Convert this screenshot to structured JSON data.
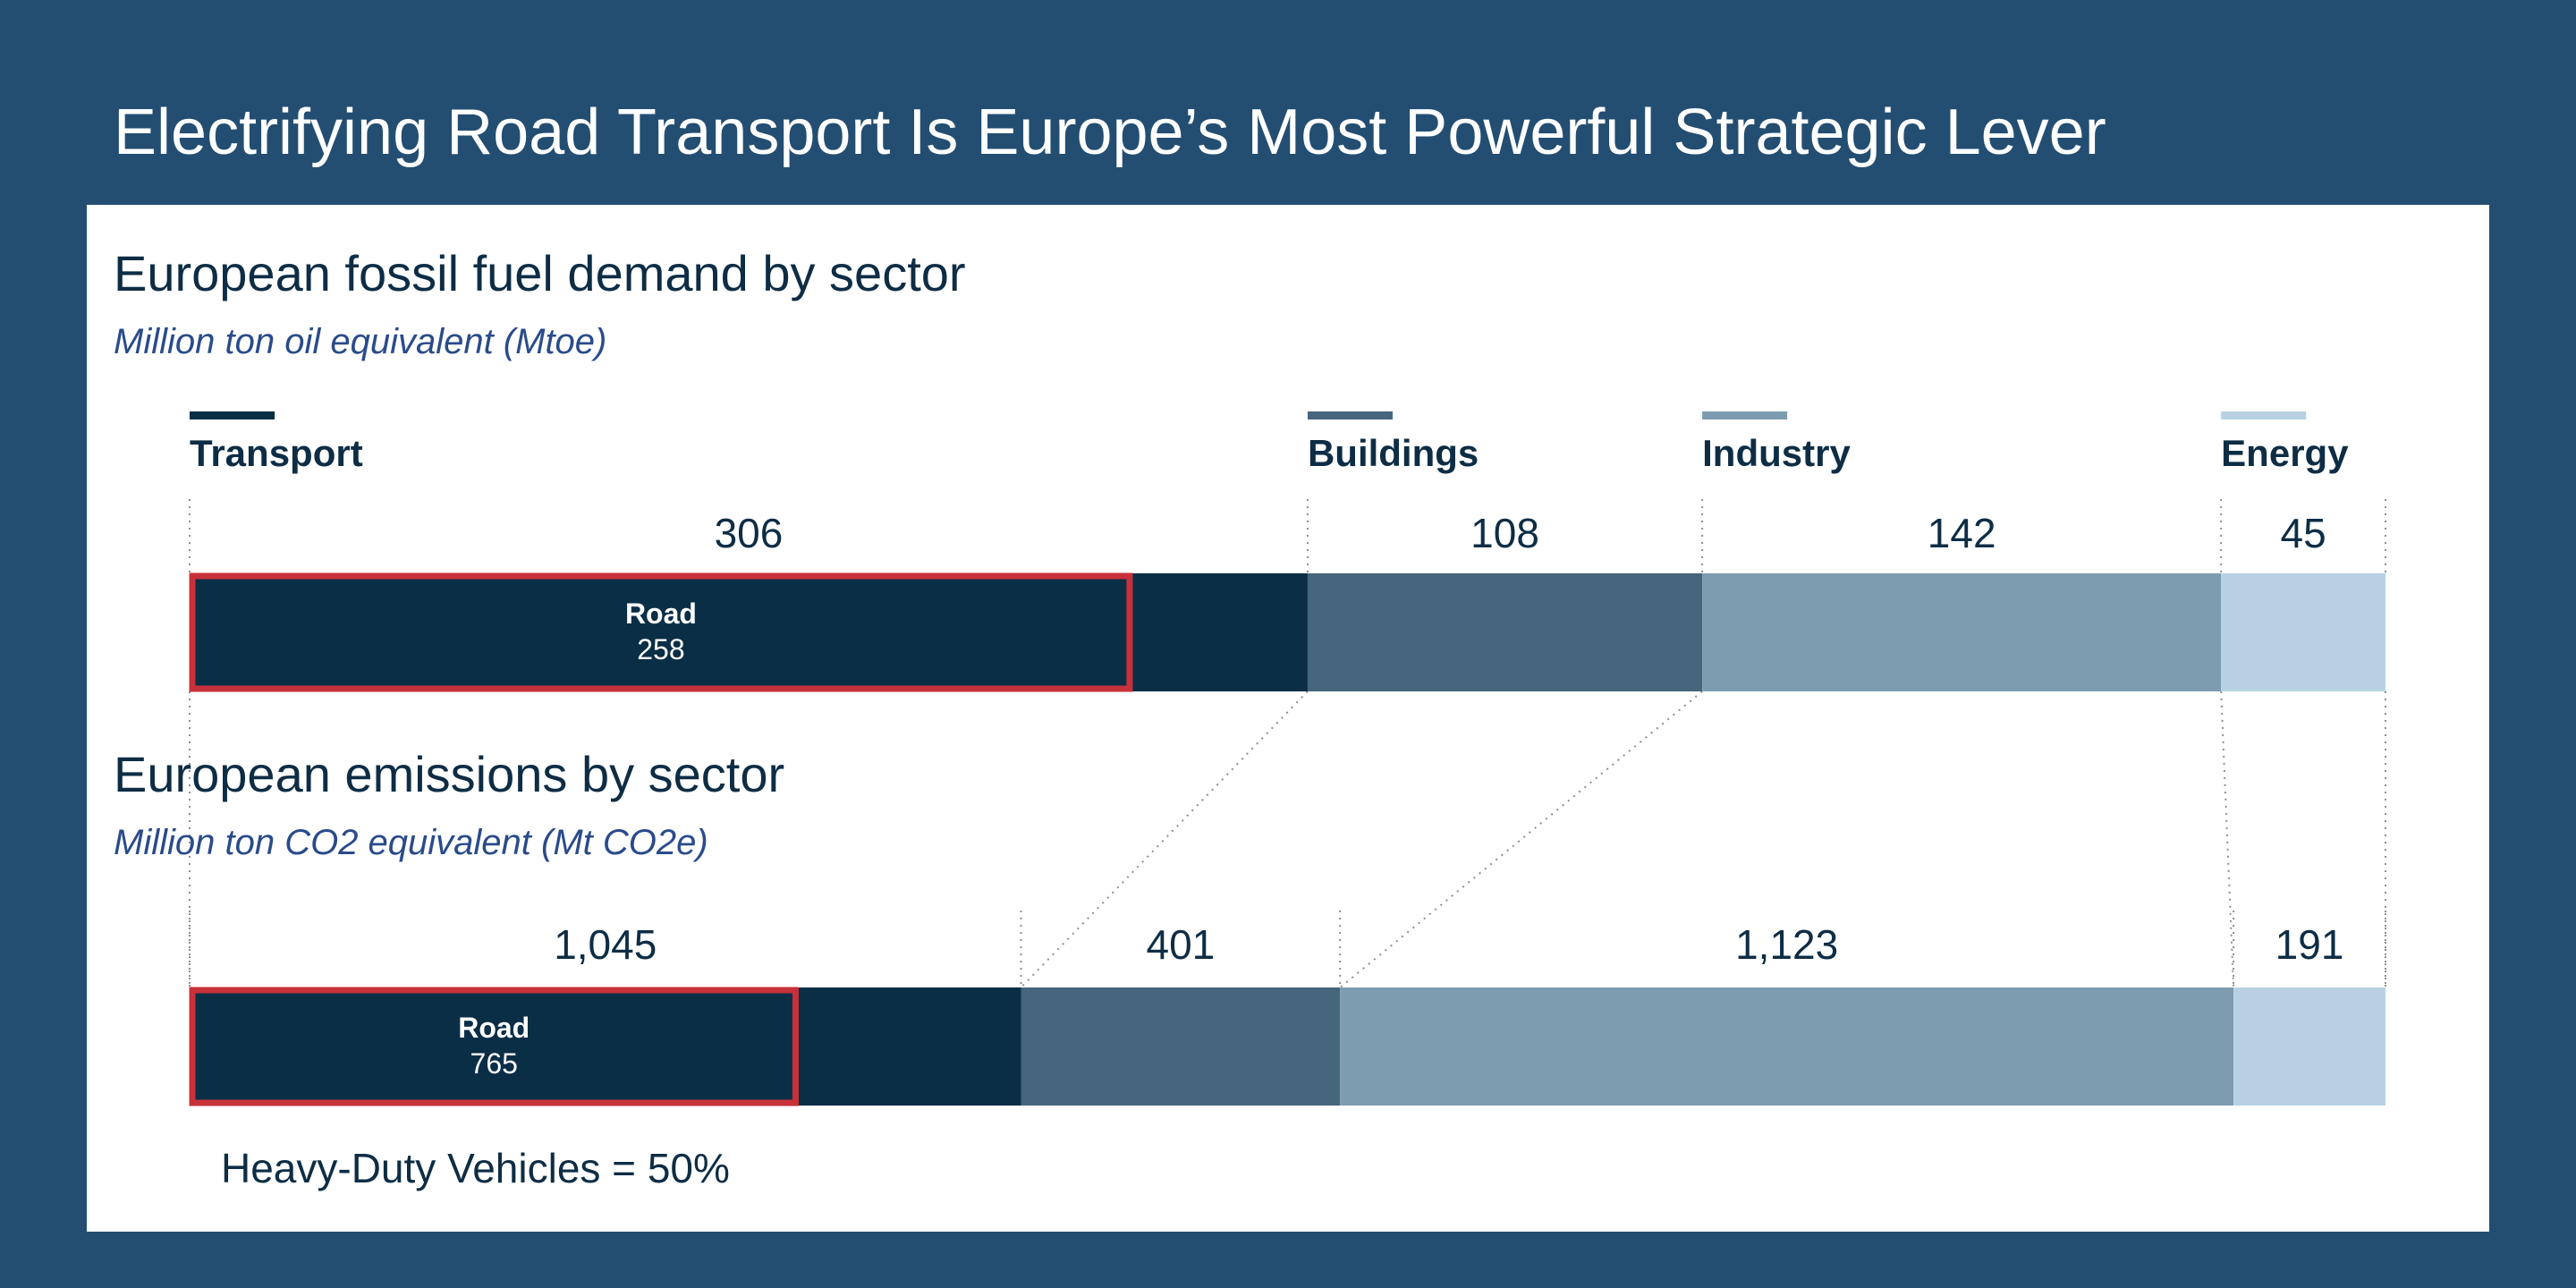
{
  "slide": {
    "title": "Electrifying Road Transport Is Europe’s Most Powerful Strategic Lever"
  },
  "colors": {
    "background": "#234e72",
    "transport": "#0b2e47",
    "buildings": "#45667d",
    "industry": "#7d9caf",
    "energy": "#b7d1e3",
    "highlight": "#c8313a",
    "title_text": "#0e2d45",
    "subtitle_text": "#2a4b8a"
  },
  "legend": [
    {
      "label": "Transport",
      "color": "#0b2e47"
    },
    {
      "label": "Buildings",
      "color": "#45667d"
    },
    {
      "label": "Industry",
      "color": "#7d9caf"
    },
    {
      "label": "Energy",
      "color": "#b7d1e3"
    }
  ],
  "chart_data": [
    {
      "type": "bar",
      "orientation": "horizontal-stacked",
      "title": "European fossil fuel demand by sector",
      "subtitle": "Million ton oil equivalent (Mtoe)",
      "categories": [
        "Transport",
        "Buildings",
        "Industry",
        "Energy"
      ],
      "values": [
        306,
        108,
        142,
        45
      ],
      "value_labels": [
        "306",
        "108",
        "142",
        "45"
      ],
      "highlight": {
        "name": "Road",
        "value": 258,
        "value_label": "258",
        "within": "Transport"
      }
    },
    {
      "type": "bar",
      "orientation": "horizontal-stacked",
      "title": "European emissions by sector",
      "subtitle": "Million ton CO2 equivalent (Mt CO2e)",
      "categories": [
        "Transport",
        "Buildings",
        "Industry",
        "Energy"
      ],
      "values": [
        1045,
        401,
        1123,
        191
      ],
      "value_labels": [
        "1,045",
        "401",
        "1,123",
        "191"
      ],
      "highlight": {
        "name": "Road",
        "value": 765,
        "value_label": "765",
        "within": "Transport"
      },
      "annotation": "Heavy-Duty Vehicles = 50%"
    }
  ]
}
